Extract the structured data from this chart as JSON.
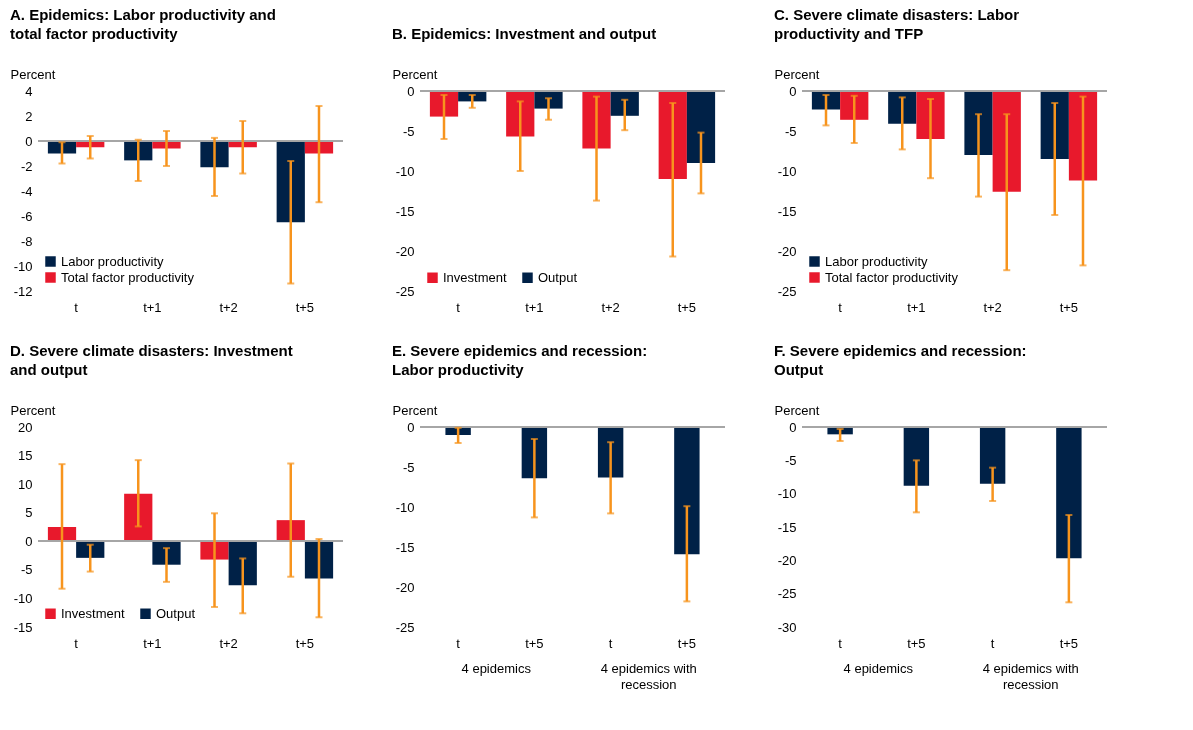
{
  "chart_data": [
    {
      "type": "bar",
      "title": "A. Epidemics: Labor productivity and total factor productivity",
      "ylabel": "Percent",
      "categories": [
        "t",
        "t+1",
        "t+2",
        "t+5"
      ],
      "ylim": [
        -12,
        4
      ],
      "yticks": [
        -12,
        -10,
        -8,
        -6,
        -4,
        -2,
        0,
        2,
        4
      ],
      "legend": "bottom left",
      "ref_lines": [
        {
          "axis": "y",
          "value": 0
        }
      ],
      "series": [
        {
          "name": "Labor productivity",
          "color": "#002147",
          "values": [
            -1.0,
            -1.55,
            -2.1,
            -6.5
          ],
          "errors": [
            [
              -1.8,
              -0.1
            ],
            [
              -3.2,
              0.1
            ],
            [
              -4.4,
              0.25
            ],
            [
              -11.4,
              -1.6
            ]
          ]
        },
        {
          "name": "Total factor productivity",
          "color": "#e8192c",
          "values": [
            -0.5,
            -0.6,
            -0.5,
            -1.0
          ],
          "errors": [
            [
              -1.4,
              0.4
            ],
            [
              -2.0,
              0.8
            ],
            [
              -2.6,
              1.6
            ],
            [
              -4.9,
              2.8
            ]
          ]
        }
      ]
    },
    {
      "type": "bar",
      "title": "B. Epidemics: Investment and output",
      "ylabel": "Percent",
      "categories": [
        "t",
        "t+1",
        "t+2",
        "t+5"
      ],
      "ylim": [
        -25,
        0
      ],
      "yticks": [
        -25,
        -20,
        -15,
        -10,
        -5,
        0
      ],
      "legend": "bottom left",
      "ref_lines": [
        {
          "axis": "y",
          "value": 0
        }
      ],
      "series": [
        {
          "name": "Investment",
          "color": "#e8192c",
          "values": [
            -3.2,
            -5.7,
            -7.2,
            -11.0
          ],
          "errors": [
            [
              -6.0,
              -0.5
            ],
            [
              -10.0,
              -1.3
            ],
            [
              -13.7,
              -0.7
            ],
            [
              -20.7,
              -1.5
            ]
          ]
        },
        {
          "name": "Output",
          "color": "#002147",
          "values": [
            -1.3,
            -2.2,
            -3.1,
            -9.0
          ],
          "errors": [
            [
              -2.1,
              -0.5
            ],
            [
              -3.6,
              -0.9
            ],
            [
              -4.9,
              -1.1
            ],
            [
              -12.8,
              -5.2
            ]
          ]
        }
      ]
    },
    {
      "type": "bar",
      "title": "C. Severe climate disasters: Labor productivity and TFP",
      "ylabel": "Percent",
      "categories": [
        "t",
        "t+1",
        "t+2",
        "t+5"
      ],
      "ylim": [
        -25,
        0
      ],
      "yticks": [
        -25,
        -20,
        -15,
        -10,
        -5,
        0
      ],
      "legend": "bottom left",
      "ref_lines": [
        {
          "axis": "y",
          "value": 0
        }
      ],
      "series": [
        {
          "name": "Labor productivity",
          "color": "#002147",
          "values": [
            -2.3,
            -4.1,
            -8.0,
            -8.5
          ],
          "errors": [
            [
              -4.3,
              -0.5
            ],
            [
              -7.3,
              -0.8
            ],
            [
              -13.2,
              -2.9
            ],
            [
              -15.5,
              -1.5
            ]
          ]
        },
        {
          "name": "Total factor productivity",
          "color": "#e8192c",
          "values": [
            -3.6,
            -6.0,
            -12.6,
            -11.2
          ],
          "errors": [
            [
              -6.5,
              -0.6
            ],
            [
              -10.9,
              -1.0
            ],
            [
              -22.4,
              -2.9
            ],
            [
              -21.8,
              -0.7
            ]
          ]
        }
      ]
    },
    {
      "type": "bar",
      "title": "D. Severe climate disasters: Investment and output",
      "ylabel": "Percent",
      "categories": [
        "t",
        "t+1",
        "t+2",
        "t+5"
      ],
      "ylim": [
        -15,
        20
      ],
      "yticks": [
        -15,
        -10,
        -5,
        0,
        5,
        10,
        15,
        20
      ],
      "legend": "bottom left",
      "ref_lines": [
        {
          "axis": "y",
          "value": 0
        }
      ],
      "series": [
        {
          "name": "Investment",
          "color": "#e8192c",
          "values": [
            2.5,
            8.3,
            -3.2,
            3.7
          ],
          "errors": [
            [
              -8.3,
              13.5
            ],
            [
              2.6,
              14.2
            ],
            [
              -11.5,
              4.9
            ],
            [
              -6.2,
              13.6
            ]
          ]
        },
        {
          "name": "Output",
          "color": "#002147",
          "values": [
            -2.9,
            -4.1,
            -7.7,
            -6.5
          ],
          "errors": [
            [
              -5.3,
              -0.6
            ],
            [
              -7.1,
              -1.2
            ],
            [
              -12.6,
              -3.0
            ],
            [
              -13.3,
              0.4
            ]
          ]
        }
      ]
    },
    {
      "type": "bar",
      "title": "E. Severe epidemics and recession: Labor productivity",
      "ylabel": "Percent",
      "categories": [
        "t",
        "t+5",
        "t",
        "t+5"
      ],
      "ylim": [
        -25,
        0
      ],
      "yticks": [
        -25,
        -20,
        -15,
        -10,
        -5,
        0
      ],
      "ref_lines": [
        {
          "axis": "y",
          "value": 0
        }
      ],
      "annotations": [
        "4 epidemics",
        "4 epidemics with recession"
      ],
      "series": [
        {
          "color": "#002147",
          "values": [
            -1.0,
            -6.4,
            -6.3,
            -15.9
          ],
          "errors": [
            [
              -2.0,
              -0.1
            ],
            [
              -11.3,
              -1.5
            ],
            [
              -10.8,
              -1.9
            ],
            [
              -21.8,
              -9.9
            ]
          ]
        }
      ]
    },
    {
      "type": "bar",
      "title": "F. Severe epidemics and recession: Output",
      "ylabel": "Percent",
      "categories": [
        "t",
        "t+5",
        "t",
        "t+5"
      ],
      "ylim": [
        -30,
        0
      ],
      "yticks": [
        -30,
        -25,
        -20,
        -15,
        -10,
        -5,
        0
      ],
      "ref_lines": [
        {
          "axis": "y",
          "value": 0
        }
      ],
      "annotations": [
        "4 epidemics",
        "4 epidemics with recession"
      ],
      "series": [
        {
          "color": "#002147",
          "values": [
            -1.1,
            -8.8,
            -8.5,
            -19.7
          ],
          "errors": [
            [
              -2.1,
              -0.3
            ],
            [
              -12.8,
              -5.0
            ],
            [
              -11.1,
              -6.1
            ],
            [
              -26.3,
              -13.2
            ]
          ]
        }
      ]
    }
  ]
}
